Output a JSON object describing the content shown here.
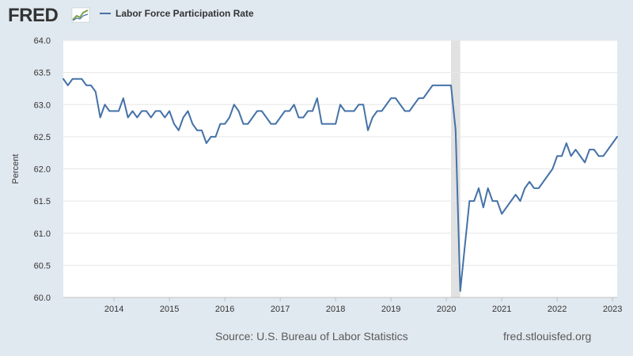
{
  "header": {
    "logo_text": "FRED",
    "legend_label": "Labor Force Participation Rate"
  },
  "footer": {
    "source": "Source: U.S. Bureau of Labor Statistics",
    "url": "fred.stlouisfed.org"
  },
  "colors": {
    "series": "#4572a7",
    "recession": "#e1e1e1",
    "page_background": "#e1e9f0",
    "plot_background": "#ffffff"
  },
  "chart_data": {
    "type": "line",
    "ylabel": "Percent",
    "ylim": [
      60.0,
      64.0
    ],
    "y_ticks": [
      "60.0",
      "60.5",
      "61.0",
      "61.5",
      "62.0",
      "62.5",
      "63.0",
      "63.5",
      "64.0"
    ],
    "x_ticks": [
      "2014",
      "2015",
      "2016",
      "2017",
      "2018",
      "2019",
      "2020",
      "2021",
      "2022",
      "2023"
    ],
    "xlim": [
      "2013-02",
      "2023-02"
    ],
    "grid": "horizontal",
    "recession": {
      "start": "2020-02",
      "end": "2020-04"
    },
    "series": [
      {
        "name": "Labor Force Participation Rate",
        "start": "2013-02",
        "frequency": "monthly",
        "values": [
          63.4,
          63.3,
          63.4,
          63.4,
          63.4,
          63.3,
          63.3,
          63.2,
          62.8,
          63.0,
          62.9,
          62.9,
          62.9,
          63.1,
          62.8,
          62.9,
          62.8,
          62.9,
          62.9,
          62.8,
          62.9,
          62.9,
          62.8,
          62.9,
          62.7,
          62.6,
          62.8,
          62.9,
          62.7,
          62.6,
          62.6,
          62.4,
          62.5,
          62.5,
          62.7,
          62.7,
          62.8,
          63.0,
          62.9,
          62.7,
          62.7,
          62.8,
          62.9,
          62.9,
          62.8,
          62.7,
          62.7,
          62.8,
          62.9,
          62.9,
          63.0,
          62.8,
          62.8,
          62.9,
          62.9,
          63.1,
          62.7,
          62.7,
          62.7,
          62.7,
          63.0,
          62.9,
          62.9,
          62.9,
          63.0,
          63.0,
          62.6,
          62.8,
          62.9,
          62.9,
          63.0,
          63.1,
          63.1,
          63.0,
          62.9,
          62.9,
          63.0,
          63.1,
          63.1,
          63.2,
          63.3,
          63.3,
          63.3,
          63.3,
          63.3,
          62.6,
          60.1,
          60.8,
          61.5,
          61.5,
          61.7,
          61.4,
          61.7,
          61.5,
          61.5,
          61.3,
          61.4,
          61.5,
          61.6,
          61.5,
          61.7,
          61.8,
          61.7,
          61.7,
          61.8,
          61.9,
          62.0,
          62.2,
          62.2,
          62.4,
          62.2,
          62.3,
          62.2,
          62.1,
          62.3,
          62.3,
          62.2,
          62.2,
          62.3,
          62.4,
          62.5
        ]
      }
    ]
  }
}
